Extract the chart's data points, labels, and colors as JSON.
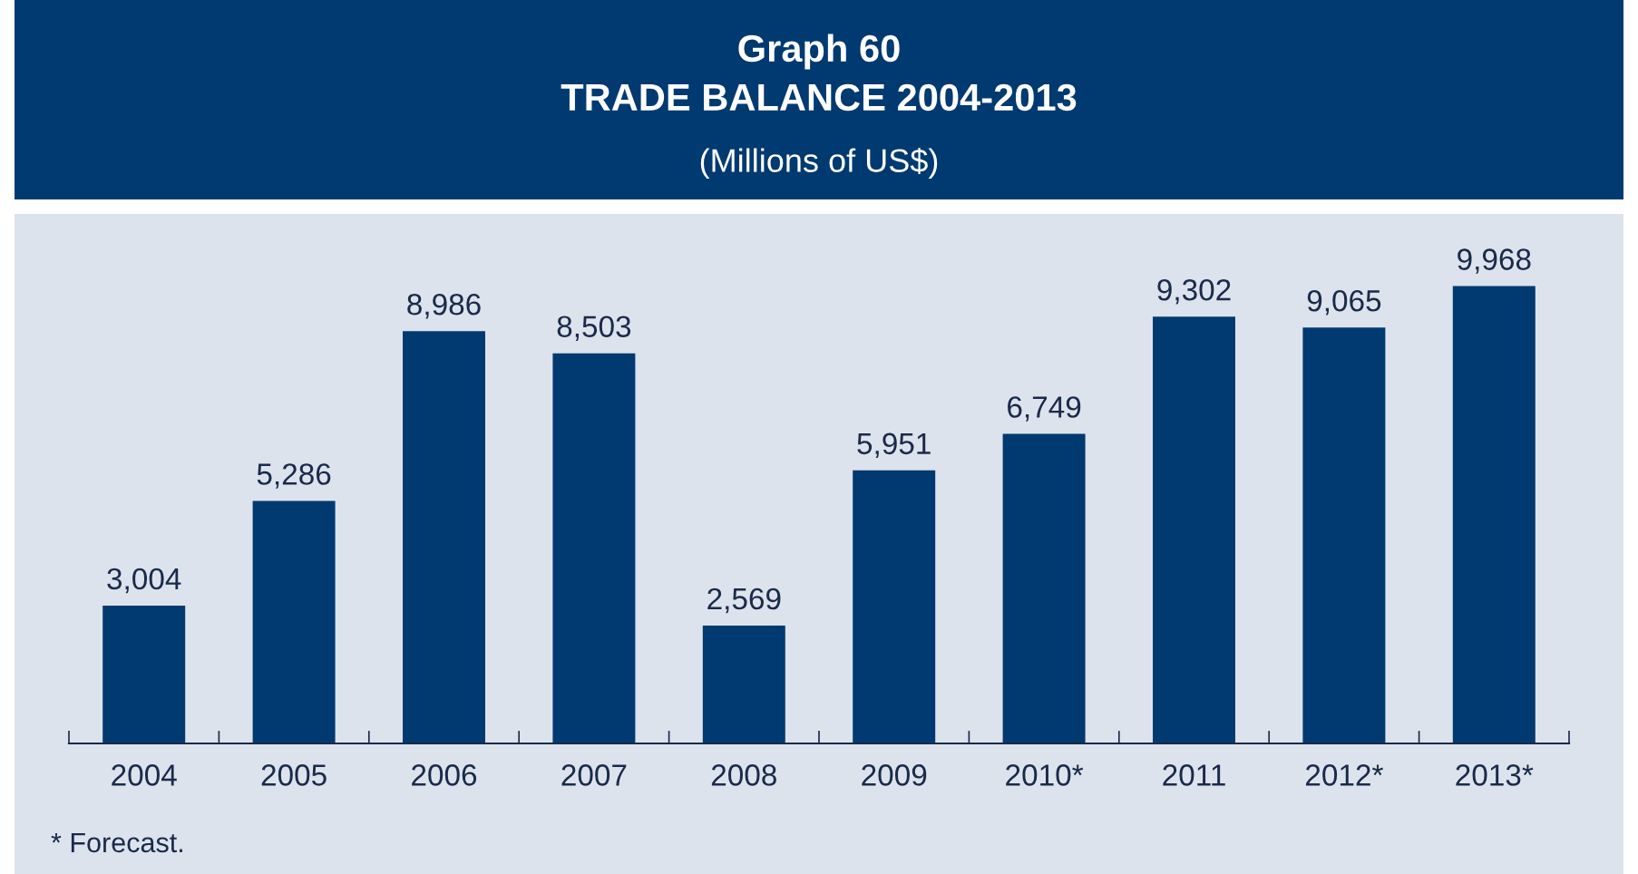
{
  "chart_data": {
    "type": "bar",
    "title": "Graph 60\nTRADE BALANCE 2004-2013",
    "subtitle": "(Millions of US$)",
    "categories": [
      "2004",
      "2005",
      "2006",
      "2007",
      "2008",
      "2009",
      "2010*",
      "2011",
      "2012*",
      "2013*"
    ],
    "values": [
      3004,
      5286,
      8986,
      8503,
      2569,
      5951,
      6749,
      9302,
      9065,
      9968
    ],
    "value_labels": [
      "3,004",
      "5,286",
      "8,986",
      "8,503",
      "2,569",
      "5,951",
      "6,749",
      "9,302",
      "9,065",
      "9,968"
    ],
    "color": "#003a70",
    "tick_labels": "x",
    "grid": false,
    "legend": false,
    "annotations": [
      "* Forecast."
    ]
  }
}
